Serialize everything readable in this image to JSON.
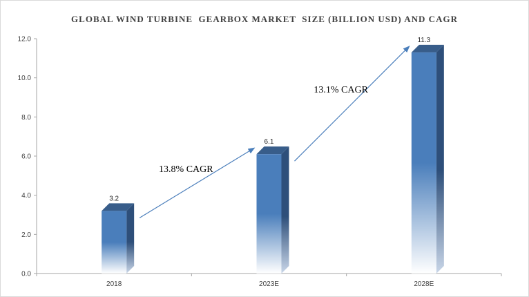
{
  "chart_data": {
    "type": "bar",
    "title": "GLOBAL WIND TURBINE  GEARBOX MARKET  SIZE (BILLION USD) AND CAGR",
    "categories": [
      "2018",
      "2023E",
      "2028E"
    ],
    "values": [
      3.2,
      6.1,
      11.3
    ],
    "value_labels": [
      "3.2",
      "6.1",
      "11.3"
    ],
    "xlabel": "",
    "ylabel": "",
    "ylim": [
      0,
      12
    ],
    "yticks": [
      0,
      2,
      4,
      6,
      8,
      10,
      12
    ],
    "ytick_labels": [
      "0.0",
      "2.0",
      "4.0",
      "6.0",
      "8.0",
      "10.0",
      "12.0"
    ],
    "grid": false,
    "legend": "none",
    "annotations": [
      {
        "text": "13.8% CAGR",
        "from": 0,
        "to": 1
      },
      {
        "text": "13.1% CAGR",
        "from": 1,
        "to": 2
      }
    ],
    "colors": {
      "bar_front": "#4a7ebb",
      "bar_side": "#2e4f7a",
      "bar_top": "#385d8a",
      "arrow": "#4a7ebb",
      "axis": "#a6a6a6"
    }
  }
}
